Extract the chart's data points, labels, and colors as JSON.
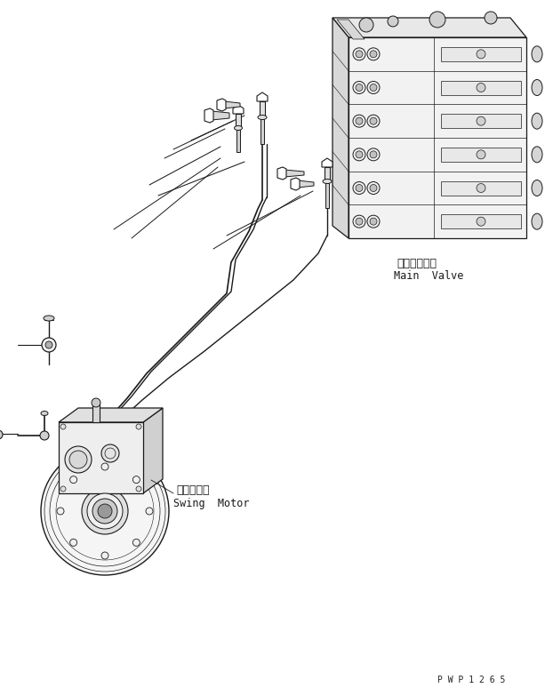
{
  "bg_color": "#ffffff",
  "line_color": "#1a1a1a",
  "label_main_valve_jp": "メインバルブ",
  "label_main_valve_en": "Main  Valve",
  "label_swing_motor_jp": "旋回モータ",
  "label_swing_motor_en": "Swing  Motor",
  "watermark": "P W P 1 2 6 5",
  "fig_width": 6.13,
  "fig_height": 7.83,
  "dpi": 100
}
